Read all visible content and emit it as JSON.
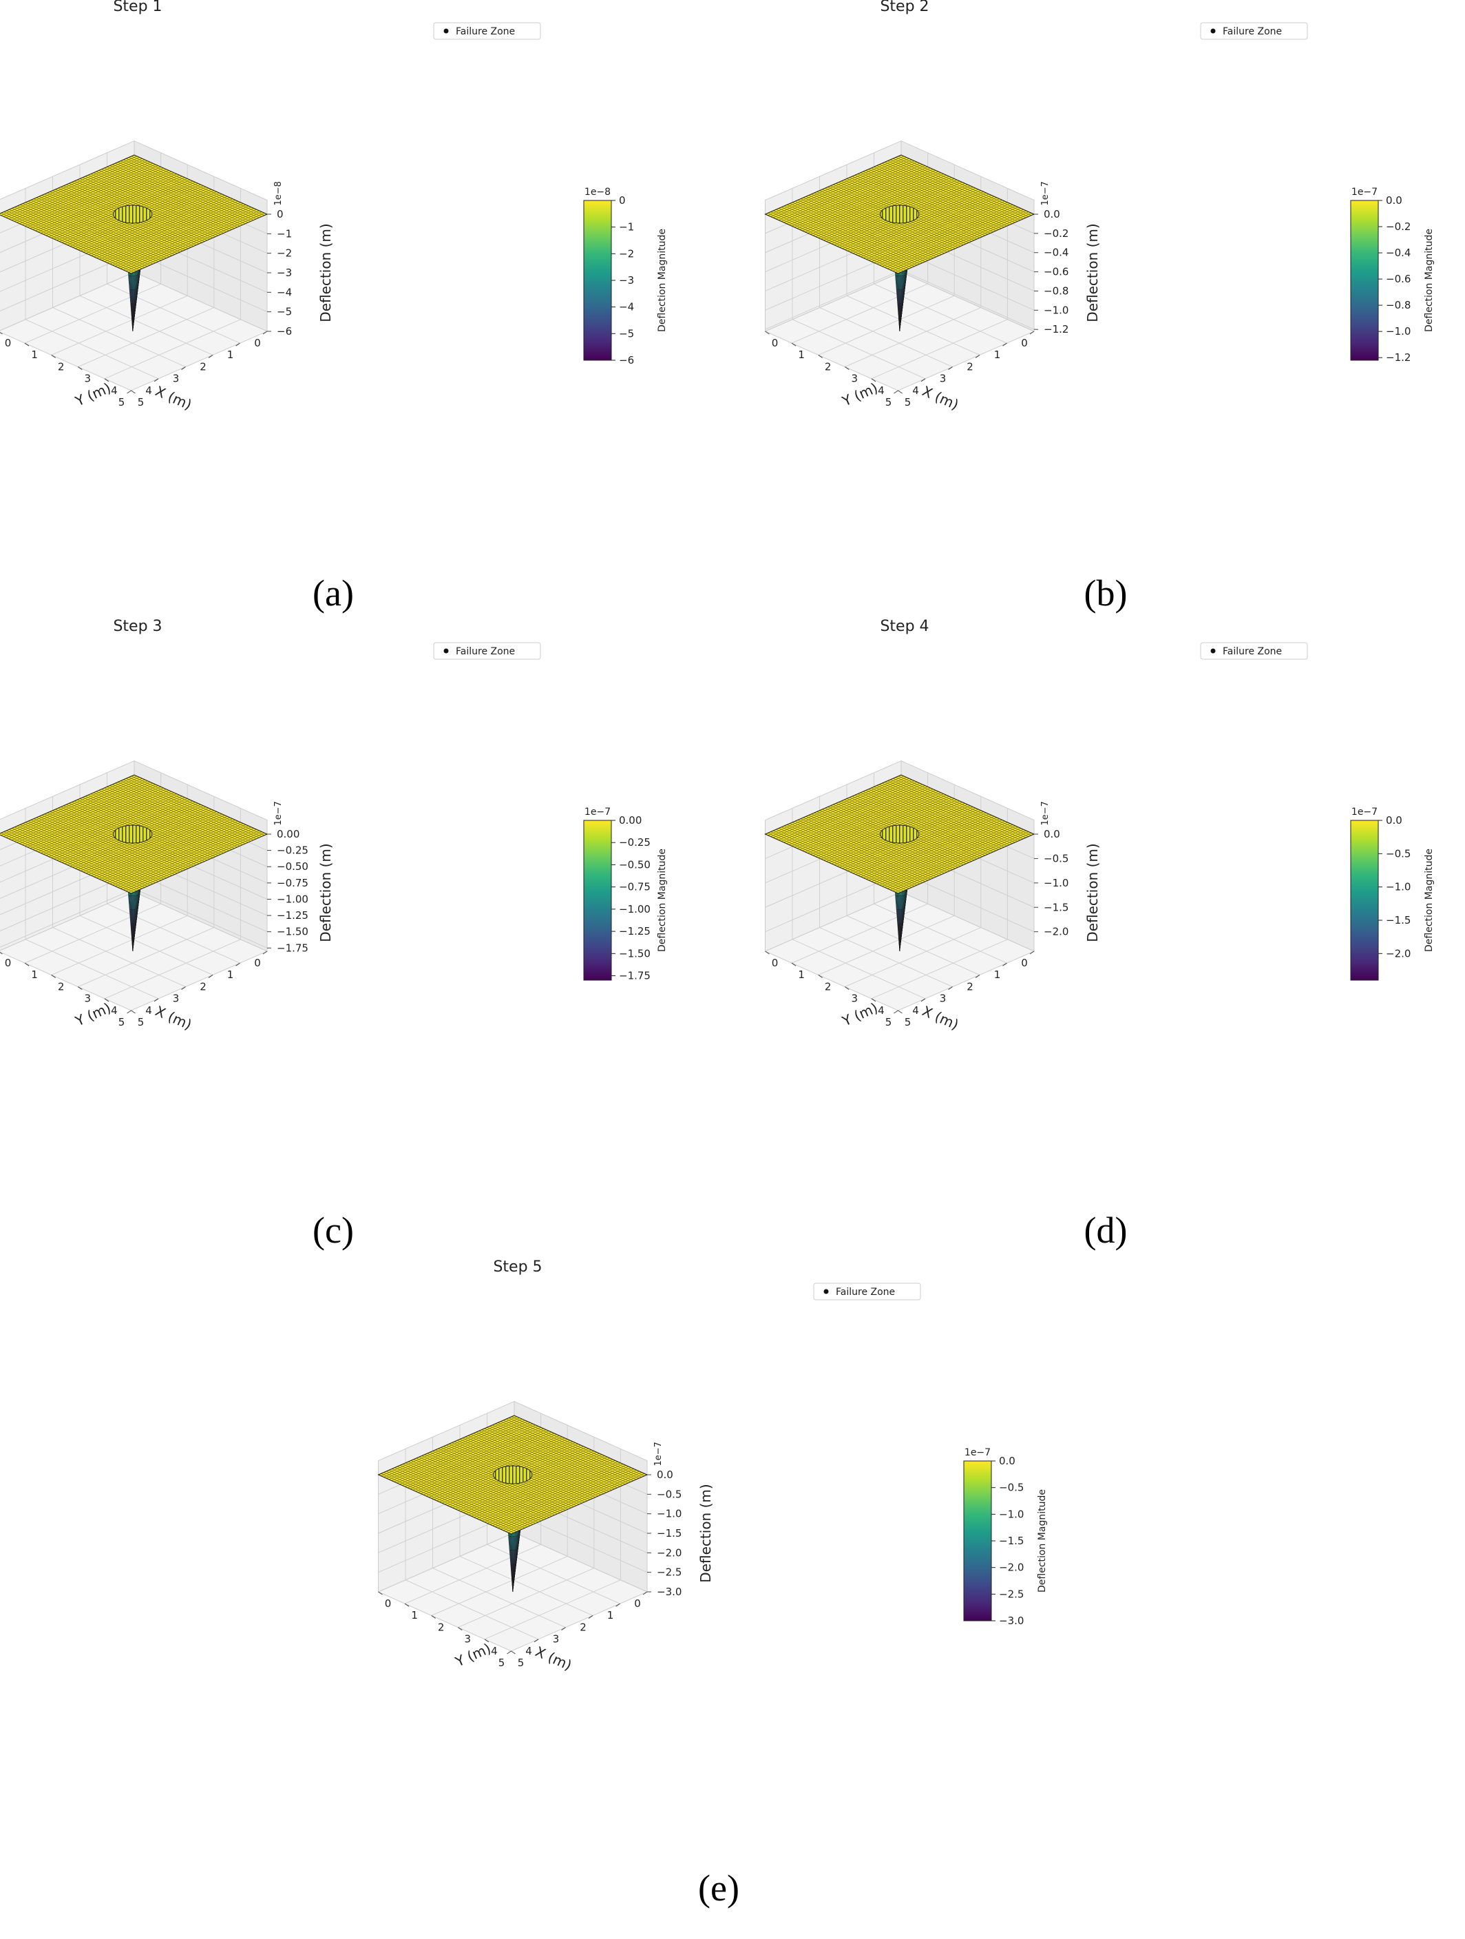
{
  "figure": {
    "captions": [
      "(a)",
      "(b)",
      "(c)",
      "(d)",
      "(e)"
    ]
  },
  "colors": {
    "viridis": [
      "#440154",
      "#482878",
      "#3e4989",
      "#31688e",
      "#26828e",
      "#1f9e89",
      "#35b779",
      "#6ece58",
      "#b5de2b",
      "#fde725"
    ],
    "pane": "#efefef",
    "grid": "#d0d0d0"
  },
  "chart_data": [
    {
      "type": "surface3d",
      "title": "Step 1",
      "legend_entry": "Failure Zone",
      "xlabel": "X (m)",
      "ylabel": "Y (m)",
      "zlabel": "Deflection (m)",
      "xlim": [
        0,
        5
      ],
      "ylim": [
        0,
        5
      ],
      "x_ticks": [
        "0",
        "1",
        "2",
        "3",
        "4",
        "5"
      ],
      "y_ticks": [
        "0",
        "1",
        "2",
        "3",
        "4",
        "5"
      ],
      "z_ticks": [
        "0",
        "−1",
        "−2",
        "−3",
        "−4",
        "−5",
        "−6"
      ],
      "z_tick_values": [
        0,
        -1,
        -2,
        -3,
        -4,
        -5,
        -6
      ],
      "z_offset": "1e−8",
      "zlim": [
        -6,
        0
      ],
      "colorbar_label": "Deflection Magnitude",
      "colorbar_ticks": [
        "0",
        "−1",
        "−2",
        "−3",
        "−4",
        "−5",
        "−6"
      ],
      "colorbar_offset": "1e−8",
      "min_deflection": -6e-08,
      "failure_center": [
        2.5,
        2.5
      ]
    },
    {
      "type": "surface3d",
      "title": "Step 2",
      "legend_entry": "Failure Zone",
      "xlabel": "X (m)",
      "ylabel": "Y (m)",
      "zlabel": "Deflection (m)",
      "xlim": [
        0,
        5
      ],
      "ylim": [
        0,
        5
      ],
      "x_ticks": [
        "0",
        "1",
        "2",
        "3",
        "4",
        "5"
      ],
      "y_ticks": [
        "0",
        "1",
        "2",
        "3",
        "4",
        "5"
      ],
      "z_ticks": [
        "0.0",
        "−0.2",
        "−0.4",
        "−0.6",
        "−0.8",
        "−1.0",
        "−1.2"
      ],
      "z_tick_values": [
        0,
        -0.2,
        -0.4,
        -0.6,
        -0.8,
        -1.0,
        -1.2
      ],
      "z_offset": "1e−7",
      "zlim": [
        -1.22,
        0
      ],
      "colorbar_label": "Deflection Magnitude",
      "colorbar_ticks": [
        "0.0",
        "−0.2",
        "−0.4",
        "−0.6",
        "−0.8",
        "−1.0",
        "−1.2"
      ],
      "colorbar_offset": "1e−7",
      "min_deflection": -1.22e-07,
      "failure_center": [
        2.5,
        2.5
      ]
    },
    {
      "type": "surface3d",
      "title": "Step 3",
      "legend_entry": "Failure Zone",
      "xlabel": "X (m)",
      "ylabel": "Y (m)",
      "zlabel": "Deflection (m)",
      "xlim": [
        0,
        5
      ],
      "ylim": [
        0,
        5
      ],
      "x_ticks": [
        "0",
        "1",
        "2",
        "3",
        "4",
        "5"
      ],
      "y_ticks": [
        "0",
        "1",
        "2",
        "3",
        "4",
        "5"
      ],
      "z_ticks": [
        "0.00",
        "−0.25",
        "−0.50",
        "−0.75",
        "−1.00",
        "−1.25",
        "−1.50",
        "−1.75"
      ],
      "z_tick_values": [
        0,
        -0.25,
        -0.5,
        -0.75,
        -1.0,
        -1.25,
        -1.5,
        -1.75
      ],
      "z_offset": "1e−7",
      "zlim": [
        -1.8,
        0
      ],
      "colorbar_label": "Deflection Magnitude",
      "colorbar_ticks": [
        "0.00",
        "−0.25",
        "−0.50",
        "−0.75",
        "−1.00",
        "−1.25",
        "−1.50",
        "−1.75"
      ],
      "colorbar_offset": "1e−7",
      "min_deflection": -1.8e-07,
      "failure_center": [
        2.5,
        2.5
      ]
    },
    {
      "type": "surface3d",
      "title": "Step 4",
      "legend_entry": "Failure Zone",
      "xlabel": "X (m)",
      "ylabel": "Y (m)",
      "zlabel": "Deflection (m)",
      "xlim": [
        0,
        5
      ],
      "ylim": [
        0,
        5
      ],
      "x_ticks": [
        "0",
        "1",
        "2",
        "3",
        "4",
        "5"
      ],
      "y_ticks": [
        "0",
        "1",
        "2",
        "3",
        "4",
        "5"
      ],
      "z_ticks": [
        "0.0",
        "−0.5",
        "−1.0",
        "−1.5",
        "−2.0"
      ],
      "z_tick_values": [
        0,
        -0.5,
        -1.0,
        -1.5,
        -2.0
      ],
      "z_offset": "1e−7",
      "zlim": [
        -2.4,
        0
      ],
      "colorbar_label": "Deflection Magnitude",
      "colorbar_ticks": [
        "0.0",
        "−0.5",
        "−1.0",
        "−1.5",
        "−2.0"
      ],
      "colorbar_offset": "1e−7",
      "min_deflection": -2.4e-07,
      "failure_center": [
        2.5,
        2.5
      ]
    },
    {
      "type": "surface3d",
      "title": "Step 5",
      "legend_entry": "Failure Zone",
      "xlabel": "X (m)",
      "ylabel": "Y (m)",
      "zlabel": "Deflection (m)",
      "xlim": [
        0,
        5
      ],
      "ylim": [
        0,
        5
      ],
      "x_ticks": [
        "0",
        "1",
        "2",
        "3",
        "4",
        "5"
      ],
      "y_ticks": [
        "0",
        "1",
        "2",
        "3",
        "4",
        "5"
      ],
      "z_ticks": [
        "0.0",
        "−0.5",
        "−1.0",
        "−1.5",
        "−2.0",
        "−2.5",
        "−3.0"
      ],
      "z_tick_values": [
        0,
        -0.5,
        -1.0,
        -1.5,
        -2.0,
        -2.5,
        -3.0
      ],
      "z_offset": "1e−7",
      "zlim": [
        -3.0,
        0
      ],
      "colorbar_label": "Deflection Magnitude",
      "colorbar_ticks": [
        "0.0",
        "−0.5",
        "−1.0",
        "−1.5",
        "−2.0",
        "−2.5",
        "−3.0"
      ],
      "colorbar_offset": "1e−7",
      "min_deflection": -3e-07,
      "failure_center": [
        2.5,
        2.5
      ]
    }
  ]
}
